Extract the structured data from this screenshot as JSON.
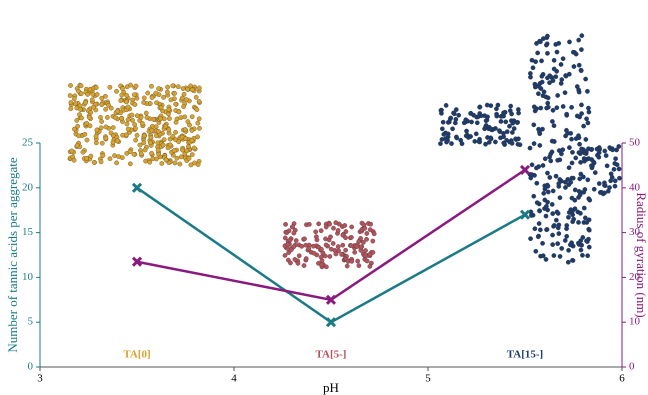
{
  "chart_data": {
    "type": "line",
    "x_label": "pH",
    "y_label": "Number of tannic acids per aggregate",
    "y2_label": "Radius of gyration (nm)",
    "x": [
      3.5,
      4.5,
      5.5
    ],
    "series": [
      {
        "color": "#1a7a86",
        "values": [
          20,
          5,
          17
        ]
      },
      {
        "color": "#8b1a7e",
        "values": [
          23.5,
          15,
          44
        ],
        "axis": "y2"
      }
    ],
    "xlim": [
      3,
      6
    ],
    "xticks": [
      3,
      4,
      5,
      6
    ],
    "ylim": [
      0,
      25
    ],
    "yticks": [
      0,
      5,
      10,
      15,
      20,
      25
    ],
    "y2lim": [
      0,
      50
    ],
    "y2ticks": [
      0,
      10,
      20,
      30,
      40,
      50
    ],
    "y_color": "#1a7a86",
    "y2_color": "#8b1a7e",
    "annotations": [
      {
        "text": "TA[0]",
        "x": 3.5,
        "color": "#d9a22a"
      },
      {
        "text": "TA[5-]",
        "x": 4.5,
        "color": "#b5535c"
      },
      {
        "text": "TA[15-]",
        "x": 5.5,
        "color": "#1d3c6e"
      }
    ]
  }
}
